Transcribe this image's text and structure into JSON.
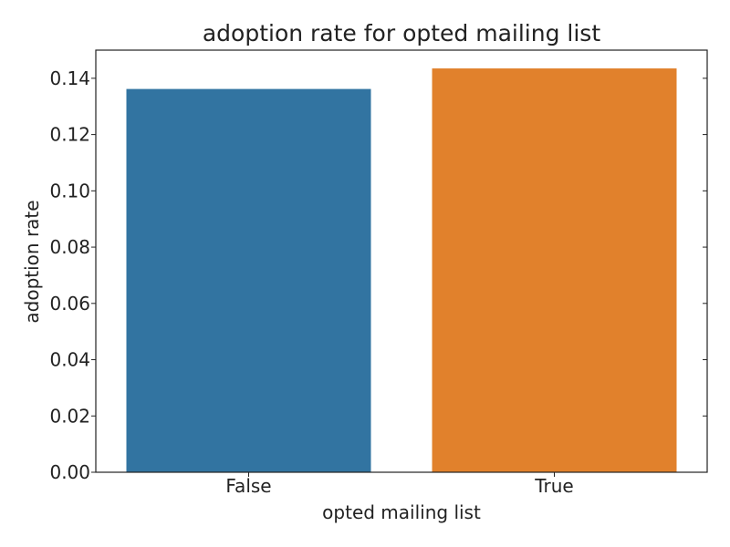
{
  "chart_data": {
    "type": "bar",
    "title": "adoption rate for opted mailing list",
    "xlabel": "opted mailing list",
    "ylabel": "adoption rate",
    "categories": [
      "False",
      "True"
    ],
    "values": [
      0.1362,
      0.1435
    ],
    "colors": [
      "#3274a1",
      "#e1812c"
    ],
    "ylim": [
      0,
      0.15
    ],
    "yticks": [
      0.0,
      0.02,
      0.04,
      0.06,
      0.08,
      0.1,
      0.12,
      0.14
    ],
    "ytick_labels": [
      "0.00",
      "0.02",
      "0.04",
      "0.06",
      "0.08",
      "0.10",
      "0.12",
      "0.14"
    ],
    "grid": false,
    "legend": "none"
  }
}
